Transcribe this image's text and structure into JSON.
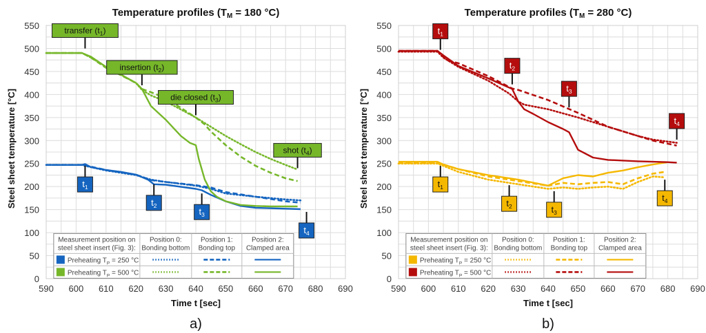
{
  "chart_data": [
    {
      "type": "line",
      "panel_label": "a)",
      "title": "Temperature profiles (T",
      "title_sub": "M",
      "title_tail": " = 180 °C)",
      "xlabel": "Time t [sec]",
      "ylabel": "Steel sheet temperature [°C]",
      "xlim": [
        590,
        690
      ],
      "ylim": [
        0,
        550
      ],
      "xticks": [
        590,
        600,
        610,
        620,
        630,
        640,
        650,
        660,
        670,
        680,
        690
      ],
      "yticks": [
        0,
        50,
        100,
        150,
        200,
        250,
        300,
        350,
        400,
        450,
        500,
        550
      ],
      "grid": true,
      "legend": {
        "placement": "bottom-left",
        "header": [
          "Measurement position on",
          "steel sheet insert (Fig. 3):"
        ],
        "columns": [
          {
            "line1": "Position 0:",
            "line2": "Bonding bottom",
            "style": "dotted"
          },
          {
            "line1": "Position 1:",
            "line2": "Bonding top",
            "style": "dashed"
          },
          {
            "line1": "Position 2:",
            "line2": "Clamped area",
            "style": "solid"
          }
        ],
        "rows": [
          {
            "label": "Preheating T",
            "sub": "P",
            "tail": " = 250 °C",
            "color": "#1565c0"
          },
          {
            "label": "Preheating T",
            "sub": "P",
            "tail": " = 500 °C",
            "color": "#76b72a"
          }
        ]
      },
      "series": [
        {
          "name": "Preheating TP = 250 °C, Position 0",
          "color": "#1565c0",
          "style": "dotted",
          "x": [
            590,
            602,
            603,
            610,
            620,
            625,
            630,
            640,
            645,
            650,
            660,
            670,
            675
          ],
          "y": [
            247,
            247,
            245,
            235,
            225,
            215,
            210,
            202,
            195,
            185,
            178,
            172,
            170
          ]
        },
        {
          "name": "Preheating TP = 250 °C, Position 1",
          "color": "#1565c0",
          "style": "dashed",
          "x": [
            590,
            602,
            603,
            610,
            620,
            625,
            630,
            640,
            645,
            650,
            660,
            670,
            675
          ],
          "y": [
            247,
            247,
            246,
            236,
            226,
            214,
            210,
            203,
            198,
            188,
            178,
            168,
            165
          ]
        },
        {
          "name": "Preheating TP = 250 °C, Position 2",
          "color": "#1565c0",
          "style": "solid",
          "x": [
            590,
            602,
            603,
            605,
            610,
            615,
            620,
            624,
            626,
            630,
            640,
            642,
            645,
            650,
            655,
            660,
            670,
            675
          ],
          "y": [
            247,
            247,
            249,
            242,
            236,
            232,
            226,
            215,
            205,
            204,
            195,
            192,
            182,
            168,
            158,
            154,
            152,
            151
          ]
        },
        {
          "name": "Preheating TP = 500 °C, Position 0",
          "color": "#76b72a",
          "style": "dotted",
          "x": [
            590,
            602,
            605,
            610,
            615,
            620,
            622,
            625,
            630,
            640,
            645,
            650,
            655,
            660,
            665,
            670,
            674
          ],
          "y": [
            490,
            490,
            480,
            460,
            443,
            425,
            410,
            398,
            385,
            350,
            330,
            310,
            292,
            275,
            260,
            247,
            237
          ]
        },
        {
          "name": "Preheating TP = 500 °C, Position 1",
          "color": "#76b72a",
          "style": "dashed",
          "x": [
            590,
            602,
            605,
            610,
            615,
            620,
            622,
            625,
            630,
            640,
            643,
            645,
            650,
            655,
            660,
            665,
            670,
            674
          ],
          "y": [
            490,
            490,
            480,
            458,
            442,
            425,
            412,
            405,
            392,
            350,
            335,
            320,
            290,
            265,
            245,
            230,
            218,
            212
          ]
        },
        {
          "name": "Preheating TP = 500 °C, Position 2",
          "color": "#76b72a",
          "style": "solid",
          "x": [
            590,
            602,
            605,
            610,
            615,
            620,
            622,
            625,
            630,
            635,
            638,
            640,
            641,
            643,
            645,
            647,
            650,
            655,
            660,
            665,
            670,
            674
          ],
          "y": [
            490,
            490,
            482,
            460,
            443,
            425,
            412,
            375,
            345,
            310,
            295,
            290,
            260,
            215,
            190,
            178,
            168,
            160,
            158,
            157,
            157,
            157
          ]
        }
      ],
      "annotations": [
        {
          "label": "transfer (t",
          "sub": "1",
          "tail": ")",
          "x": 603,
          "y": 500,
          "box": "above",
          "color": "#76b72a",
          "text_color": "#111"
        },
        {
          "label": "insertion (t",
          "sub": "2",
          "tail": ")",
          "x": 622,
          "y": 420,
          "box": "above",
          "color": "#76b72a",
          "text_color": "#111"
        },
        {
          "label": "die closed (t",
          "sub": "3",
          "tail": ")",
          "x": 640,
          "y": 355,
          "box": "above",
          "color": "#76b72a",
          "text_color": "#111"
        },
        {
          "label": "shot (t",
          "sub": "4",
          "tail": ")",
          "x": 674,
          "y": 240,
          "box": "above",
          "color": "#76b72a",
          "text_color": "#111"
        },
        {
          "label": "t",
          "sub": "1",
          "tail": "",
          "x": 603,
          "y": 245,
          "box": "below",
          "color": "#1565c0",
          "text_color": "#fff"
        },
        {
          "label": "t",
          "sub": "2",
          "tail": "",
          "x": 626,
          "y": 205,
          "box": "below",
          "color": "#1565c0",
          "text_color": "#fff"
        },
        {
          "label": "t",
          "sub": "3",
          "tail": "",
          "x": 642,
          "y": 185,
          "box": "below",
          "color": "#1565c0",
          "text_color": "#fff"
        },
        {
          "label": "t",
          "sub": "4",
          "tail": "",
          "x": 677,
          "y": 145,
          "box": "below",
          "color": "#1565c0",
          "text_color": "#fff"
        }
      ]
    },
    {
      "type": "line",
      "panel_label": "b)",
      "title": "Temperature profiles (T",
      "title_sub": "M",
      "title_tail": " = 280 °C)",
      "xlabel": "Time t [sec]",
      "ylabel": "Steel sheet temperature [°C]",
      "xlim": [
        590,
        690
      ],
      "ylim": [
        0,
        550
      ],
      "xticks": [
        590,
        600,
        610,
        620,
        630,
        640,
        650,
        660,
        670,
        680,
        690
      ],
      "yticks": [
        0,
        50,
        100,
        150,
        200,
        250,
        300,
        350,
        400,
        450,
        500,
        550
      ],
      "grid": true,
      "legend": {
        "placement": "bottom-left",
        "header": [
          "Measurement position on",
          "steel sheet insert (Fig. 3):"
        ],
        "columns": [
          {
            "line1": "Position 0:",
            "line2": "Bonding bottom",
            "style": "dotted"
          },
          {
            "line1": "Position 1:",
            "line2": "Bonding top",
            "style": "dashed"
          },
          {
            "line1": "Position 2:",
            "line2": "Clamped area",
            "style": "solid"
          }
        ],
        "rows": [
          {
            "label": "Preheating T",
            "sub": "P",
            "tail": " = 250 °C",
            "color": "#f5b800"
          },
          {
            "label": "Preheating T",
            "sub": "P",
            "tail": " = 500 °C",
            "color": "#b50d0d"
          }
        ]
      },
      "series": [
        {
          "name": "Preheating TP = 250 °C, Position 0",
          "color": "#f5b800",
          "style": "dotted",
          "x": [
            590,
            603,
            605,
            610,
            620,
            630,
            640,
            645,
            650,
            655,
            660,
            665,
            670,
            675,
            679
          ],
          "y": [
            250,
            250,
            245,
            232,
            215,
            205,
            195,
            198,
            195,
            198,
            200,
            195,
            210,
            222,
            220
          ]
        },
        {
          "name": "Preheating TP = 250 °C, Position 1",
          "color": "#f5b800",
          "style": "dashed",
          "x": [
            590,
            603,
            605,
            610,
            620,
            630,
            640,
            645,
            650,
            655,
            660,
            665,
            670,
            675,
            679
          ],
          "y": [
            252,
            252,
            248,
            238,
            222,
            212,
            202,
            208,
            205,
            208,
            210,
            205,
            218,
            228,
            232
          ]
        },
        {
          "name": "Preheating TP = 250 °C, Position 2",
          "color": "#f5b800",
          "style": "solid",
          "x": [
            590,
            603,
            605,
            610,
            620,
            630,
            640,
            645,
            650,
            655,
            660,
            665,
            670,
            675,
            680
          ],
          "y": [
            254,
            254,
            248,
            238,
            225,
            215,
            202,
            218,
            225,
            222,
            230,
            235,
            242,
            248,
            253
          ]
        },
        {
          "name": "Preheating TP = 500 °C, Position 0",
          "color": "#b50d0d",
          "style": "dotted",
          "x": [
            590,
            603,
            605,
            610,
            620,
            627,
            630,
            632,
            640,
            650,
            660,
            670,
            675,
            683
          ],
          "y": [
            493,
            493,
            480,
            460,
            430,
            402,
            385,
            378,
            368,
            350,
            330,
            310,
            302,
            295
          ]
        },
        {
          "name": "Preheating TP = 500 °C, Position 1",
          "color": "#b50d0d",
          "style": "dashed",
          "x": [
            590,
            603,
            606,
            610,
            620,
            628,
            630,
            640,
            650,
            660,
            670,
            675,
            683
          ],
          "y": [
            495,
            495,
            475,
            468,
            440,
            413,
            410,
            388,
            360,
            330,
            310,
            300,
            289
          ]
        },
        {
          "name": "Preheating TP = 500 °C, Position 2",
          "color": "#b50d0d",
          "style": "solid",
          "x": [
            590,
            603,
            605,
            610,
            620,
            628,
            630,
            632,
            635,
            640,
            645,
            647,
            650,
            655,
            660,
            670,
            680,
            683
          ],
          "y": [
            495,
            495,
            485,
            462,
            435,
            412,
            385,
            368,
            358,
            340,
            325,
            318,
            280,
            263,
            258,
            255,
            253,
            252
          ]
        }
      ],
      "annotations": [
        {
          "label": "t",
          "sub": "1",
          "tail": "",
          "x": 604,
          "y": 497,
          "box": "above",
          "color": "#b50d0d",
          "text_color": "#fff"
        },
        {
          "label": "t",
          "sub": "2",
          "tail": "",
          "x": 628,
          "y": 422,
          "box": "above",
          "color": "#b50d0d",
          "text_color": "#fff"
        },
        {
          "label": "t",
          "sub": "3",
          "tail": "",
          "x": 647,
          "y": 372,
          "box": "above",
          "color": "#b50d0d",
          "text_color": "#fff"
        },
        {
          "label": "t",
          "sub": "4",
          "tail": "",
          "x": 683,
          "y": 302,
          "box": "above",
          "color": "#b50d0d",
          "text_color": "#fff"
        },
        {
          "label": "t",
          "sub": "1",
          "tail": "",
          "x": 604,
          "y": 245,
          "box": "below",
          "color": "#f5b800",
          "text_color": "#111"
        },
        {
          "label": "t",
          "sub": "2",
          "tail": "",
          "x": 627,
          "y": 203,
          "box": "below",
          "color": "#f5b800",
          "text_color": "#111"
        },
        {
          "label": "t",
          "sub": "3",
          "tail": "",
          "x": 642,
          "y": 190,
          "box": "below",
          "color": "#f5b800",
          "text_color": "#111"
        },
        {
          "label": "t",
          "sub": "4",
          "tail": "",
          "x": 679,
          "y": 215,
          "box": "below",
          "color": "#f5b800",
          "text_color": "#111"
        }
      ]
    }
  ]
}
